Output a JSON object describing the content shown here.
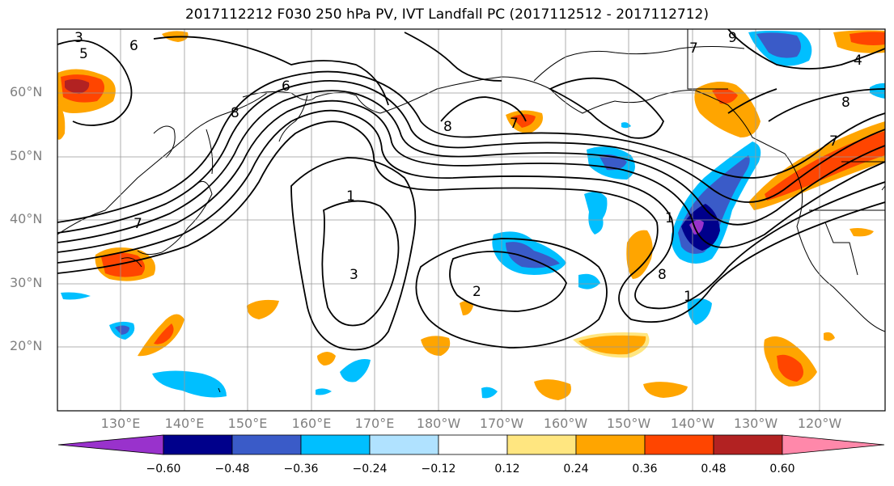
{
  "title": "2017112212 F030 250 hPa PV, IVT Landfall PC (2017112512 - 2017112712)",
  "map": {
    "lat_labels": [
      "60°N",
      "50°N",
      "40°N",
      "30°N",
      "20°N"
    ],
    "lon_labels": [
      "130°E",
      "140°E",
      "150°E",
      "160°E",
      "170°E",
      "180°W",
      "170°W",
      "160°W",
      "150°W",
      "140°W",
      "130°W",
      "120°W"
    ],
    "contour_labels": [
      "3",
      "6",
      "5",
      "7",
      "6",
      "8",
      "8",
      "7",
      "1",
      "3",
      "2",
      "1",
      "8",
      "7",
      "4",
      "8",
      "7",
      "9",
      "1"
    ],
    "colors": {
      "land_outline": "#000000",
      "contour": "#000000",
      "grid": "#999999"
    }
  },
  "colorbar": {
    "tick_labels": [
      "−0.60",
      "−0.48",
      "−0.36",
      "−0.24",
      "−0.12",
      "0.12",
      "0.24",
      "0.36",
      "0.48",
      "0.60"
    ],
    "colors": [
      "#9932CC",
      "#00008B",
      "#3A5BC8",
      "#00BFFF",
      "#B0E2FF",
      "#FFFFFF",
      "#FFE680",
      "#FFA500",
      "#FF4500",
      "#B22222",
      "#FF88AA"
    ]
  }
}
